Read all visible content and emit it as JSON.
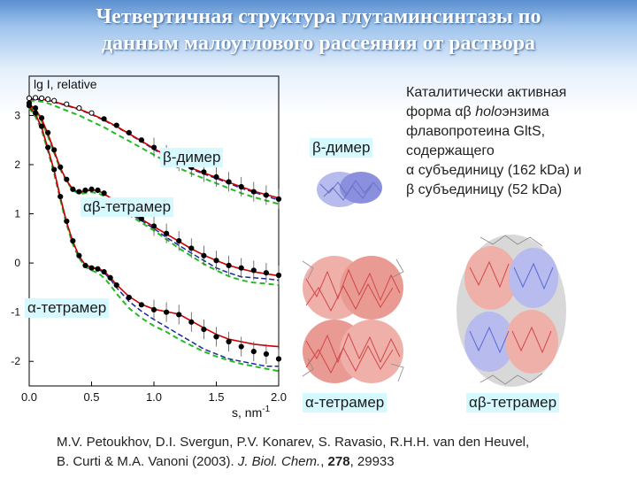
{
  "title_line1": "Четвертичная структура глутаминсинтазы по",
  "title_line2": "данным малоуглового рассеяния от раствора",
  "description": {
    "line1": "Каталитически активная",
    "line2_pre": "форма αβ ",
    "line2_ital": "holo",
    "line2_post": "энзима",
    "line3": "флавопротеина GltS,",
    "line4": "содержащего",
    "line5": "α субъединицу (162 kDa) и",
    "line6": "β субъединицу (52 kDa)"
  },
  "structure_labels": {
    "beta_dimer": "β-димер",
    "alpha_tetramer": "α-тетрамер",
    "alphabeta_tetramer": "αβ-тетрамер"
  },
  "reference": {
    "line1": "M.V. Petoukhov, D.I. Svergun, P.V. Konarev, S. Ravasio, R.H.H. van den Heuvel,",
    "line2_pre": "B. Curti & M.A. Vanoni (2003). ",
    "journal": "J. Biol. Chem.",
    "sep": ", ",
    "volume": "278",
    "pages": ", 29933"
  },
  "colors": {
    "experimental": "#000000",
    "fit_red": "#cc0000",
    "fit_blue": "#1a2aa0",
    "fit_green": "#22bb22",
    "label_bg": "#d6f8ff",
    "alpha_color": "#e05a5a",
    "beta_color": "#5a6ad8",
    "gray_color": "#9a9a9a"
  },
  "chart_data": {
    "type": "line",
    "ylabel": "lg I, relative",
    "xlabel": "s, nm",
    "xlabel_sup": "-1",
    "xlim": [
      0.0,
      2.0
    ],
    "ylim": [
      -2.5,
      3.8
    ],
    "x_ticks": [
      0.0,
      0.5,
      1.0,
      1.5,
      2.0
    ],
    "x_tick_labels": [
      "0.0",
      "0.5",
      "1.0",
      "1.5",
      "2.0"
    ],
    "y_ticks": [
      -2,
      -1,
      0,
      1,
      2,
      3
    ],
    "y_tick_labels": [
      "-2",
      "-1",
      "0",
      "1",
      "2",
      "3"
    ],
    "curve_labels": [
      "β-димер",
      "αβ-тетрамер",
      "α-тетрамер"
    ],
    "curves": [
      {
        "label": "β-димер",
        "x": [
          0.0,
          0.05,
          0.1,
          0.15,
          0.2,
          0.3,
          0.4,
          0.5,
          0.6,
          0.7,
          0.8,
          0.9,
          1.0,
          1.1,
          1.2,
          1.3,
          1.4,
          1.5,
          1.6,
          1.7,
          1.8,
          1.9,
          2.0
        ],
        "experimental": [
          3.35,
          3.36,
          3.35,
          3.33,
          3.3,
          3.23,
          3.15,
          3.05,
          2.93,
          2.8,
          2.65,
          2.5,
          2.35,
          2.2,
          2.07,
          1.95,
          1.85,
          1.75,
          1.65,
          1.55,
          1.45,
          1.38,
          1.3
        ],
        "fit_red": [
          3.33,
          3.34,
          3.33,
          3.31,
          3.28,
          3.21,
          3.13,
          3.03,
          2.91,
          2.78,
          2.63,
          2.48,
          2.33,
          2.18,
          2.05,
          1.93,
          1.83,
          1.74,
          1.64,
          1.55,
          1.46,
          1.39,
          1.32
        ],
        "fit_blue": [
          3.32,
          3.33,
          3.32,
          3.3,
          3.27,
          3.2,
          3.12,
          3.02,
          2.9,
          2.77,
          2.62,
          2.47,
          2.31,
          2.16,
          2.03,
          1.91,
          1.81,
          1.72,
          1.62,
          1.52,
          1.44,
          1.36,
          1.28
        ],
        "fit_green": [
          3.3,
          3.3,
          3.28,
          3.25,
          3.2,
          3.1,
          3.0,
          2.88,
          2.76,
          2.62,
          2.48,
          2.34,
          2.2,
          2.06,
          1.93,
          1.82,
          1.72,
          1.62,
          1.52,
          1.42,
          1.34,
          1.27,
          1.2
        ]
      },
      {
        "label": "αβ-тетрамер",
        "x": [
          0.0,
          0.05,
          0.1,
          0.15,
          0.2,
          0.25,
          0.3,
          0.35,
          0.4,
          0.45,
          0.5,
          0.55,
          0.6,
          0.7,
          0.8,
          0.9,
          1.0,
          1.1,
          1.2,
          1.3,
          1.4,
          1.5,
          1.6,
          1.7,
          1.8,
          1.9,
          2.0
        ],
        "experimental": [
          3.25,
          3.15,
          2.95,
          2.65,
          2.3,
          1.95,
          1.7,
          1.5,
          1.45,
          1.48,
          1.5,
          1.48,
          1.42,
          1.25,
          1.05,
          0.9,
          0.75,
          0.6,
          0.45,
          0.3,
          0.15,
          0.05,
          -0.05,
          -0.1,
          -0.15,
          -0.2,
          -0.25
        ],
        "fit_red": [
          3.23,
          3.13,
          2.93,
          2.63,
          2.28,
          1.93,
          1.68,
          1.5,
          1.44,
          1.47,
          1.49,
          1.47,
          1.41,
          1.24,
          1.04,
          0.89,
          0.74,
          0.59,
          0.44,
          0.29,
          0.16,
          0.05,
          -0.05,
          -0.12,
          -0.18,
          -0.22,
          -0.26
        ],
        "fit_blue": [
          3.22,
          3.12,
          2.92,
          2.62,
          2.27,
          1.92,
          1.67,
          1.49,
          1.43,
          1.46,
          1.48,
          1.46,
          1.4,
          1.22,
          1.02,
          0.86,
          0.7,
          0.52,
          0.36,
          0.2,
          0.05,
          -0.1,
          -0.2,
          -0.28,
          -0.3,
          -0.32,
          -0.35
        ],
        "fit_green": [
          3.2,
          3.08,
          2.88,
          2.58,
          2.24,
          1.9,
          1.66,
          1.48,
          1.4,
          1.42,
          1.44,
          1.42,
          1.36,
          1.18,
          0.98,
          0.82,
          0.66,
          0.48,
          0.3,
          0.14,
          -0.02,
          -0.15,
          -0.27,
          -0.35,
          -0.4,
          -0.42,
          -0.45
        ]
      },
      {
        "label": "α-тетрамер",
        "x": [
          0.0,
          0.05,
          0.1,
          0.15,
          0.2,
          0.25,
          0.3,
          0.35,
          0.4,
          0.45,
          0.5,
          0.55,
          0.6,
          0.65,
          0.7,
          0.8,
          0.9,
          1.0,
          1.1,
          1.2,
          1.3,
          1.4,
          1.5,
          1.6,
          1.7,
          1.8,
          1.9,
          2.0
        ],
        "experimental": [
          3.2,
          3.05,
          2.78,
          2.35,
          1.9,
          1.35,
          0.85,
          0.45,
          0.15,
          -0.05,
          -0.1,
          -0.12,
          -0.18,
          -0.3,
          -0.45,
          -0.7,
          -0.85,
          -0.95,
          -1.0,
          -1.05,
          -1.2,
          -1.35,
          -1.5,
          -1.6,
          -1.7,
          -1.8,
          -1.85,
          -1.95
        ],
        "fit_red": [
          3.18,
          3.03,
          2.76,
          2.33,
          1.88,
          1.33,
          0.83,
          0.44,
          0.14,
          -0.04,
          -0.09,
          -0.11,
          -0.17,
          -0.29,
          -0.44,
          -0.68,
          -0.84,
          -0.94,
          -0.99,
          -1.04,
          -1.18,
          -1.32,
          -1.45,
          -1.55,
          -1.6,
          -1.65,
          -1.68,
          -1.7
        ],
        "fit_blue": [
          3.17,
          3.02,
          2.75,
          2.32,
          1.87,
          1.32,
          0.82,
          0.43,
          0.13,
          -0.05,
          -0.1,
          -0.12,
          -0.2,
          -0.33,
          -0.5,
          -0.78,
          -0.98,
          -1.15,
          -1.3,
          -1.45,
          -1.6,
          -1.75,
          -1.85,
          -1.95,
          -2.0,
          -2.05,
          -2.1,
          -2.1
        ],
        "fit_green": [
          3.15,
          2.98,
          2.7,
          2.28,
          1.82,
          1.28,
          0.78,
          0.38,
          0.1,
          -0.08,
          -0.15,
          -0.2,
          -0.3,
          -0.45,
          -0.62,
          -0.92,
          -1.12,
          -1.28,
          -1.4,
          -1.55,
          -1.68,
          -1.8,
          -1.9,
          -1.98,
          -2.05,
          -2.1,
          -2.15,
          -2.2
        ]
      }
    ]
  }
}
